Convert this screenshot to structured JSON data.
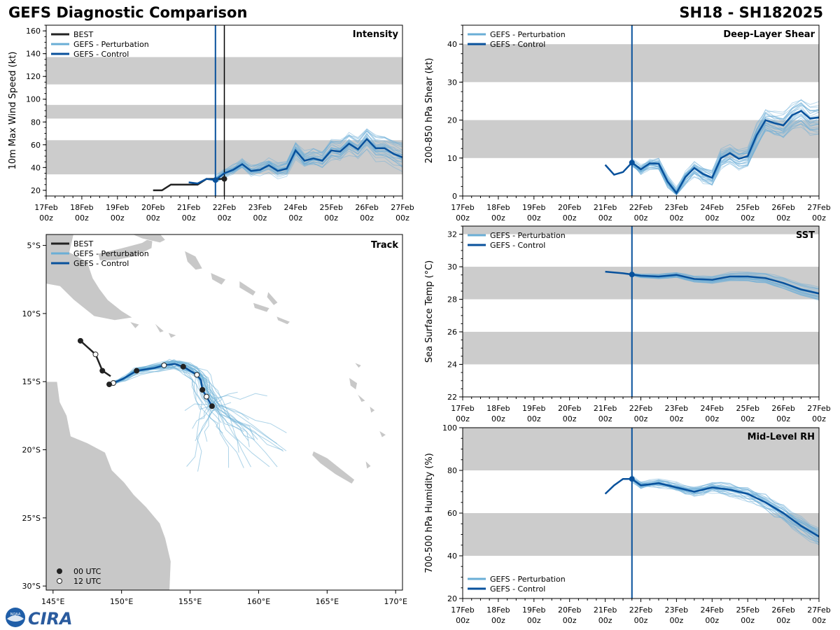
{
  "header": {
    "title_left": "GEFS Diagnostic Comparison",
    "title_right": "SH18 - SH182025"
  },
  "logo": {
    "text": "CIRA",
    "badge": "NOAA"
  },
  "colors": {
    "best": "#222222",
    "perturbation": "#6aaed6",
    "control": "#08519c",
    "band": "#cccccc",
    "vline": "#08519c"
  },
  "time_axis": {
    "ticks": [
      "17Feb",
      "18Feb",
      "19Feb",
      "20Feb",
      "21Feb",
      "22Feb",
      "23Feb",
      "24Feb",
      "25Feb",
      "26Feb",
      "27Feb"
    ],
    "sub": "00z",
    "init_day": 4.75
  },
  "chart_data": [
    {
      "id": "intensity",
      "type": "line",
      "title": "Intensity",
      "ylabel": "10m Max Wind Speed (kt)",
      "xlim": [
        0,
        10
      ],
      "ylim": [
        15,
        165
      ],
      "yticks": [
        20,
        40,
        60,
        80,
        100,
        120,
        140,
        160
      ],
      "bands": [
        [
          34,
          64
        ],
        [
          83,
          95
        ],
        [
          113,
          137
        ]
      ],
      "legend": [
        "BEST",
        "GEFS - Perturbation",
        "GEFS - Control"
      ],
      "best_vline": 5.0,
      "series": [
        {
          "name": "BEST",
          "x": [
            3.0,
            3.25,
            3.5,
            3.75,
            4.0,
            4.25,
            4.5,
            4.75,
            5.0
          ],
          "y": [
            20,
            20,
            25,
            25,
            25,
            25,
            30,
            30,
            30
          ]
        },
        {
          "name": "GEFS - Control",
          "x": [
            4.0,
            4.25,
            4.5,
            4.75,
            5.0,
            5.25,
            5.5,
            5.75,
            6.0,
            6.25,
            6.5,
            6.75,
            7.0,
            7.25,
            7.5,
            7.75,
            8.0,
            8.25,
            8.5,
            8.75,
            9.0,
            9.25,
            9.5,
            9.75,
            10.0
          ],
          "y": [
            27,
            26,
            30,
            29,
            35,
            38,
            43,
            37,
            38,
            42,
            37,
            39,
            55,
            46,
            48,
            46,
            55,
            54,
            61,
            56,
            65,
            57,
            57,
            52,
            49
          ]
        }
      ]
    },
    {
      "id": "shear",
      "type": "line",
      "title": "Deep-Layer Shear",
      "ylabel": "200-850 hPa Shear (kt)",
      "xlim": [
        0,
        10
      ],
      "ylim": [
        0,
        45
      ],
      "yticks": [
        0,
        10,
        20,
        30,
        40
      ],
      "bands": [
        [
          10,
          20
        ],
        [
          30,
          40
        ]
      ],
      "legend": [
        "GEFS - Perturbation",
        "GEFS - Control"
      ],
      "series": [
        {
          "name": "GEFS - Control",
          "x": [
            4.0,
            4.25,
            4.5,
            4.75,
            5.0,
            5.25,
            5.5,
            5.75,
            6.0,
            6.25,
            6.5,
            6.75,
            7.0,
            7.25,
            7.5,
            7.75,
            8.0,
            8.25,
            8.5,
            8.75,
            9.0,
            9.25,
            9.5,
            9.75,
            10.0
          ],
          "y": [
            8.2,
            5.6,
            6.3,
            8.8,
            7.0,
            8.6,
            8.5,
            3.8,
            0.8,
            5.0,
            7.4,
            5.8,
            4.8,
            10.0,
            11.3,
            9.8,
            10.5,
            16.0,
            20.0,
            19.2,
            18.6,
            21.3,
            22.4,
            20.4,
            20.7
          ]
        }
      ]
    },
    {
      "id": "track",
      "type": "map",
      "title": "Track",
      "xlim_deg_e": [
        144.5,
        170.5
      ],
      "ylim_deg_s": [
        4.2,
        30.3
      ],
      "xticks": [
        "145°E",
        "150°E",
        "155°E",
        "160°E",
        "165°E",
        "170°E"
      ],
      "xtick_values": [
        145,
        150,
        155,
        160,
        165,
        170
      ],
      "yticks": [
        "5°S",
        "10°S",
        "15°S",
        "20°S",
        "25°S",
        "30°S"
      ],
      "ytick_values": [
        5,
        10,
        15,
        20,
        25,
        30
      ],
      "legend": [
        "BEST",
        "GEFS - Perturbation",
        "GEFS - Control"
      ],
      "marker_legend": [
        "00 UTC",
        "12 UTC"
      ],
      "best_track": {
        "lon": [
          147.0,
          148.1,
          148.6,
          149.2
        ],
        "lat": [
          12.0,
          13.0,
          14.2,
          14.6
        ]
      },
      "control_track": {
        "lon": [
          149.1,
          149.4,
          150.1,
          151.1,
          152.4,
          153.1,
          153.9,
          154.5,
          155.0,
          155.5,
          155.8,
          155.9,
          156.2,
          156.6
        ],
        "lat": [
          15.2,
          15.1,
          14.8,
          14.2,
          14.0,
          13.8,
          13.7,
          13.9,
          14.2,
          14.5,
          14.9,
          15.6,
          16.1,
          16.8
        ]
      }
    },
    {
      "id": "sst",
      "type": "line",
      "title": "SST",
      "ylabel": "Sea Surface Temp (°C)",
      "xlim": [
        0,
        10
      ],
      "ylim": [
        22,
        32.5
      ],
      "yticks": [
        22,
        24,
        26,
        28,
        30,
        32
      ],
      "bands": [
        [
          24,
          26
        ],
        [
          28,
          30
        ],
        [
          32,
          32.5
        ]
      ],
      "legend": [
        "GEFS - Perturbation",
        "GEFS - Control"
      ],
      "series": [
        {
          "name": "GEFS - Control",
          "x": [
            4.0,
            4.5,
            5.0,
            5.5,
            6.0,
            6.5,
            7.0,
            7.5,
            8.0,
            8.5,
            9.0,
            9.5,
            10.0
          ],
          "y": [
            29.7,
            29.6,
            29.45,
            29.4,
            29.5,
            29.25,
            29.2,
            29.4,
            29.4,
            29.3,
            29.0,
            28.6,
            28.35
          ]
        }
      ]
    },
    {
      "id": "rh",
      "type": "line",
      "title": "Mid-Level RH",
      "ylabel": "700-500 hPa Humidity (%)",
      "xlim": [
        0,
        10
      ],
      "ylim": [
        20,
        100
      ],
      "yticks": [
        20,
        40,
        60,
        80,
        100
      ],
      "bands": [
        [
          40,
          60
        ],
        [
          80,
          100
        ]
      ],
      "legend": [
        "GEFS - Perturbation",
        "GEFS - Control"
      ],
      "series": [
        {
          "name": "GEFS - Control",
          "x": [
            4.0,
            4.25,
            4.5,
            4.75,
            5.0,
            5.5,
            6.0,
            6.5,
            7.0,
            7.5,
            8.0,
            8.5,
            9.0,
            9.5,
            10.0
          ],
          "y": [
            69,
            73,
            76,
            76,
            73,
            74,
            72,
            70,
            72,
            71,
            69,
            65,
            60,
            54,
            49
          ]
        }
      ]
    }
  ]
}
